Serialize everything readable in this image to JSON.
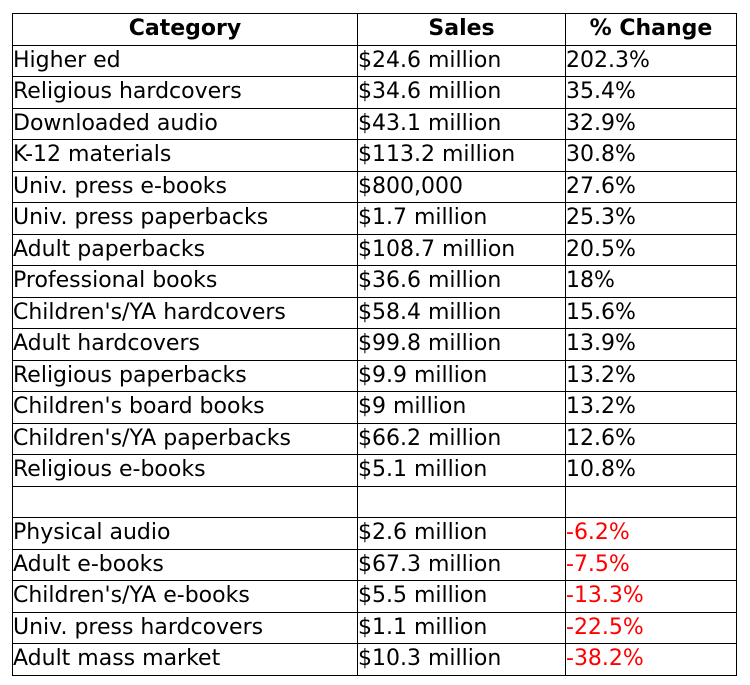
{
  "chart_data": {
    "type": "table",
    "columns": [
      "Category",
      "Sales",
      "% Change"
    ],
    "rows": [
      {
        "category": "Higher ed",
        "sales": "$24.6 million",
        "change": "202.3%"
      },
      {
        "category": "Religious hardcovers",
        "sales": "$34.6 million",
        "change": " 35.4%"
      },
      {
        "category": "Downloaded audio",
        "sales": "$43.1 million",
        "change": " 32.9%"
      },
      {
        "category": "K-12 materials",
        "sales": "$113.2 million",
        "change": " 30.8%"
      },
      {
        "category": "Univ. press e-books",
        "sales": "$800,000",
        "change": " 27.6%"
      },
      {
        "category": "Univ. press paperbacks",
        "sales": "$1.7 million",
        "change": " 25.3%"
      },
      {
        "category": "Adult paperbacks",
        "sales": "$108.7 million",
        "change": " 20.5%"
      },
      {
        "category": "Professional books",
        "sales": "$36.6 million",
        "change": " 18%"
      },
      {
        "category": "Children's/YA hardcovers",
        "sales": "$58.4 million",
        "change": " 15.6%"
      },
      {
        "category": "Adult hardcovers",
        "sales": "$99.8 million",
        "change": " 13.9%"
      },
      {
        "category": "Religious paperbacks",
        "sales": "$9.9 million",
        "change": " 13.2%"
      },
      {
        "category": "Children's board books",
        "sales": "$9 million",
        "change": " 13.2%"
      },
      {
        "category": "Children's/YA paperbacks",
        "sales": "$66.2 million",
        "change": " 12.6%"
      },
      {
        "category": "Religious e-books",
        "sales": "$5.1 million",
        "change": " 10.8%"
      },
      {
        "category": "",
        "sales": "",
        "change": ""
      },
      {
        "category": "Physical audio",
        "sales": "$2.6 million",
        "change": " -6.2%"
      },
      {
        "category": "Adult e-books",
        "sales": "$67.3 million",
        "change": " -7.5%"
      },
      {
        "category": "Children's/YA e-books",
        "sales": "$5.5 million",
        "change": "-13.3%"
      },
      {
        "category": "Univ. press hardcovers",
        "sales": "$1.1 million",
        "change": "-22.5%"
      },
      {
        "category": "Adult mass market",
        "sales": "$10.3 million",
        "change": "-38.2%"
      }
    ],
    "negative_color": "#ff0000",
    "text_color": "#000000",
    "border_color": "#000000"
  }
}
